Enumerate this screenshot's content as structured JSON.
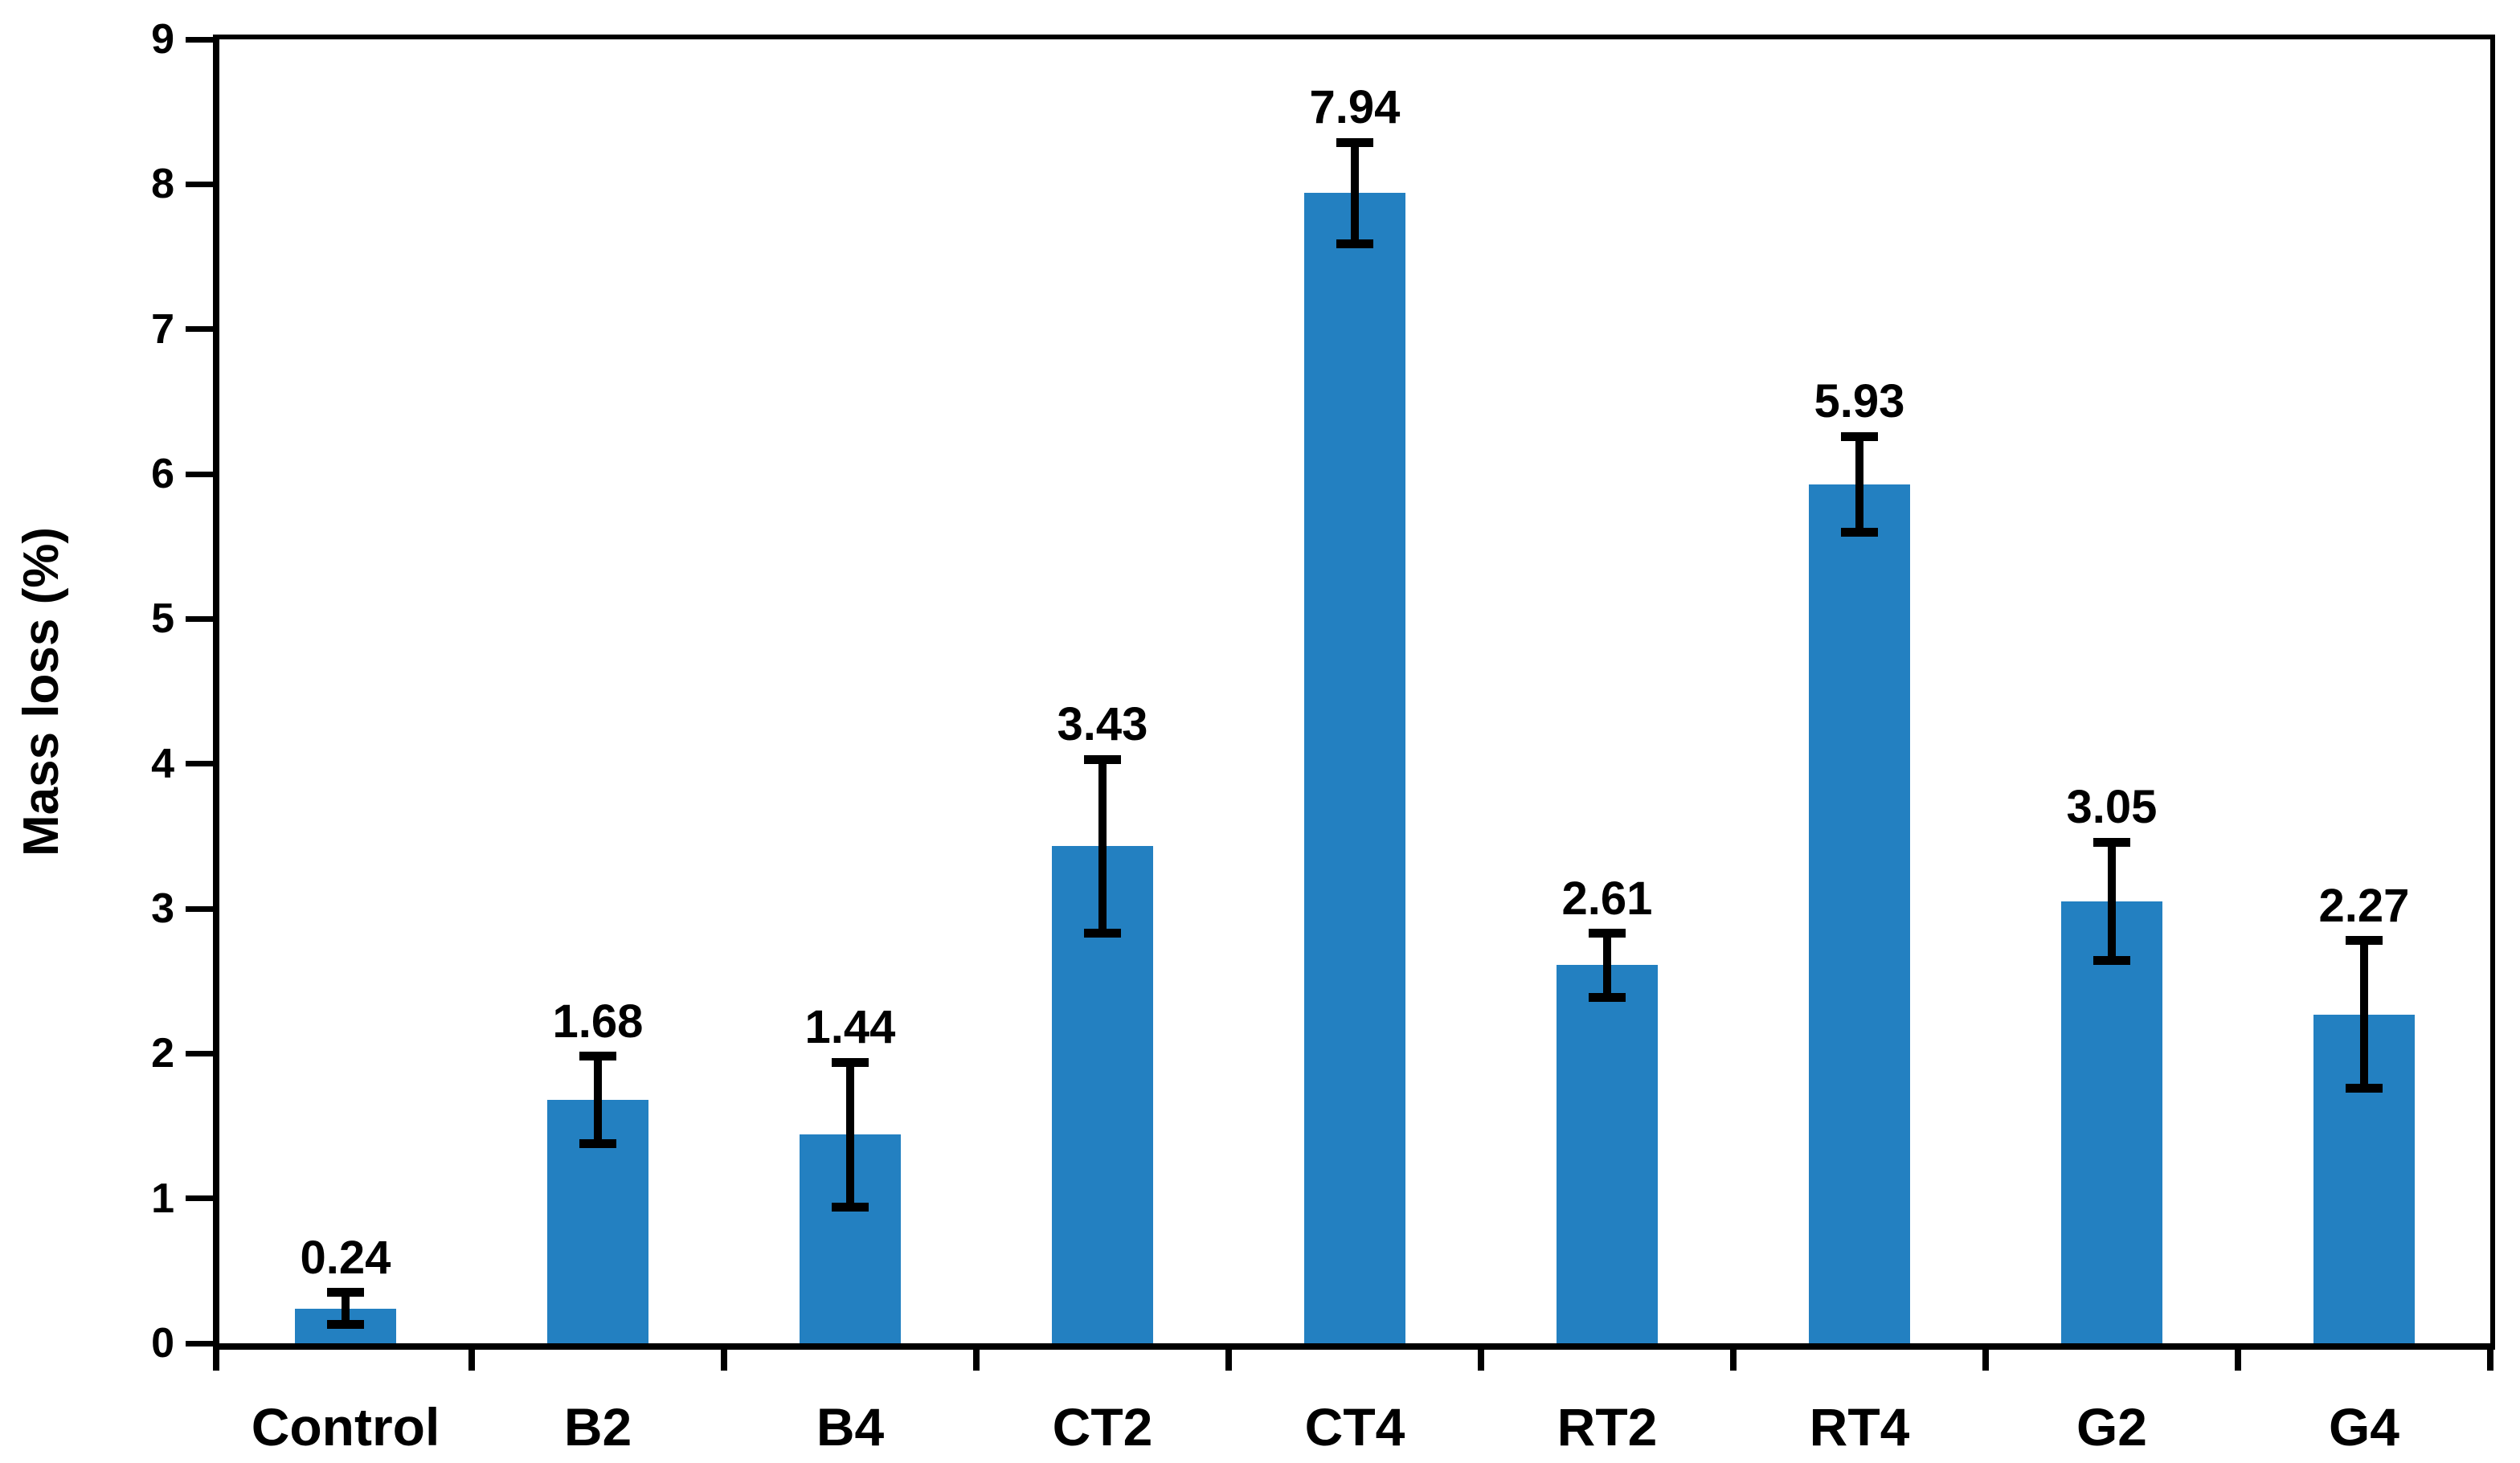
{
  "chart_data": {
    "type": "bar",
    "title": "",
    "categories": [
      "Control",
      "B2",
      "B4",
      "CT2",
      "CT4",
      "RT2",
      "RT4",
      "G2",
      "G4"
    ],
    "values": [
      0.24,
      1.68,
      1.44,
      3.43,
      7.94,
      2.61,
      5.93,
      3.05,
      2.27
    ],
    "data_labels": [
      "0.24",
      "1.68",
      "1.44",
      "3.43",
      "7.94",
      "2.61",
      "5.93",
      "3.05",
      "2.27"
    ],
    "error_bars": [
      0.11,
      0.3,
      0.5,
      0.6,
      0.35,
      0.22,
      0.33,
      0.41,
      0.51
    ],
    "xlabel": "",
    "ylabel": "Mass loss (%)",
    "ylim": [
      0,
      9
    ],
    "yticks": [
      0,
      1,
      2,
      3,
      4,
      5,
      6,
      7,
      8,
      9
    ],
    "grid": false,
    "legend": "none",
    "bar_color": "#2380C1",
    "error_bar_color": "#000000",
    "axis_color": "#000000",
    "text_color": "#000000",
    "background_color": "#ffffff"
  }
}
